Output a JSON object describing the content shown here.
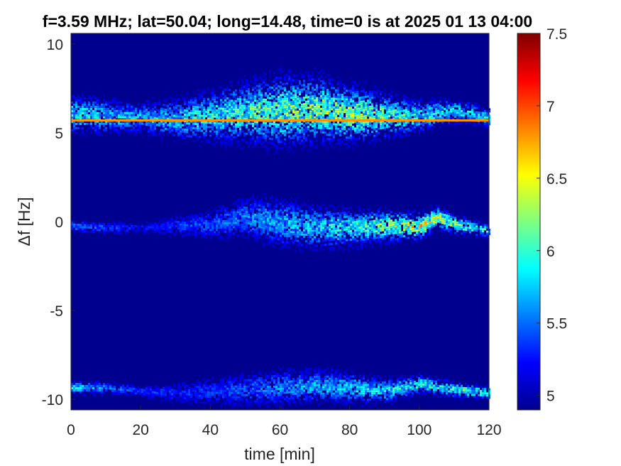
{
  "chart_data": {
    "type": "heatmap",
    "title": "f=3.59 MHz;  lat=50.04; long=14.48, time=0 is at 2025 01 13 04:00",
    "xlabel": "time [min]",
    "ylabel": "Δf [Hz]",
    "xlim": [
      0,
      120
    ],
    "ylim": [
      -10.6,
      10.6
    ],
    "xticks": [
      "0",
      "20",
      "40",
      "60",
      "80",
      "100",
      "120"
    ],
    "yticks": [
      "10",
      "5",
      "0",
      "-5",
      "-10"
    ],
    "colorbar": {
      "clim": [
        4.9,
        7.5
      ],
      "ticks": [
        "7.5",
        "7",
        "6.5",
        "6",
        "5.5",
        "5"
      ],
      "colormap": "jet"
    },
    "background_value": 4.95,
    "bands": [
      {
        "name": "line near +5.7 Hz",
        "baseline": 5.7,
        "line_value": 6.8,
        "center": [
          [
            0,
            6.1
          ],
          [
            10,
            6.0
          ],
          [
            20,
            5.9
          ],
          [
            30,
            5.8
          ],
          [
            40,
            6.0
          ],
          [
            50,
            6.2
          ],
          [
            60,
            6.3
          ],
          [
            70,
            6.4
          ],
          [
            80,
            6.1
          ],
          [
            90,
            6.0
          ],
          [
            100,
            6.0
          ],
          [
            110,
            6.3
          ],
          [
            120,
            5.9
          ]
        ],
        "spread": [
          [
            0,
            0.6
          ],
          [
            20,
            0.5
          ],
          [
            40,
            0.8
          ],
          [
            60,
            1.1
          ],
          [
            80,
            0.9
          ],
          [
            100,
            0.5
          ],
          [
            120,
            0.3
          ]
        ],
        "intensity": [
          [
            0,
            5.8
          ],
          [
            20,
            5.6
          ],
          [
            40,
            5.8
          ],
          [
            60,
            6.0
          ],
          [
            80,
            6.1
          ],
          [
            100,
            5.8
          ],
          [
            120,
            5.7
          ]
        ]
      },
      {
        "name": "band near 0 Hz",
        "baseline": null,
        "center": [
          [
            0,
            -0.2
          ],
          [
            10,
            -0.3
          ],
          [
            20,
            -0.3
          ],
          [
            30,
            -0.2
          ],
          [
            40,
            -0.1
          ],
          [
            50,
            0.3
          ],
          [
            60,
            0.0
          ],
          [
            70,
            -0.3
          ],
          [
            80,
            -0.3
          ],
          [
            90,
            -0.2
          ],
          [
            100,
            -0.2
          ],
          [
            105,
            0.3
          ],
          [
            110,
            -0.1
          ],
          [
            120,
            -0.5
          ]
        ],
        "spread": [
          [
            0,
            0.2
          ],
          [
            20,
            0.2
          ],
          [
            40,
            0.5
          ],
          [
            60,
            0.8
          ],
          [
            80,
            0.6
          ],
          [
            100,
            0.4
          ],
          [
            120,
            0.2
          ]
        ],
        "intensity": [
          [
            0,
            5.5
          ],
          [
            20,
            5.2
          ],
          [
            40,
            5.4
          ],
          [
            60,
            5.6
          ],
          [
            80,
            5.8
          ],
          [
            100,
            6.3
          ],
          [
            110,
            6.0
          ],
          [
            120,
            5.8
          ]
        ]
      },
      {
        "name": "band near -9.5 Hz",
        "baseline": null,
        "center": [
          [
            0,
            -9.3
          ],
          [
            10,
            -9.3
          ],
          [
            20,
            -9.5
          ],
          [
            30,
            -9.6
          ],
          [
            40,
            -9.5
          ],
          [
            50,
            -9.4
          ],
          [
            60,
            -9.3
          ],
          [
            70,
            -9.2
          ],
          [
            80,
            -9.3
          ],
          [
            90,
            -9.5
          ],
          [
            100,
            -9.1
          ],
          [
            110,
            -9.4
          ],
          [
            120,
            -9.6
          ]
        ],
        "spread": [
          [
            0,
            0.2
          ],
          [
            20,
            0.2
          ],
          [
            40,
            0.5
          ],
          [
            60,
            0.6
          ],
          [
            80,
            0.5
          ],
          [
            100,
            0.3
          ],
          [
            120,
            0.2
          ]
        ],
        "intensity": [
          [
            0,
            5.7
          ],
          [
            20,
            5.3
          ],
          [
            40,
            5.3
          ],
          [
            60,
            5.5
          ],
          [
            80,
            5.7
          ],
          [
            100,
            5.8
          ],
          [
            120,
            5.9
          ]
        ]
      }
    ]
  }
}
